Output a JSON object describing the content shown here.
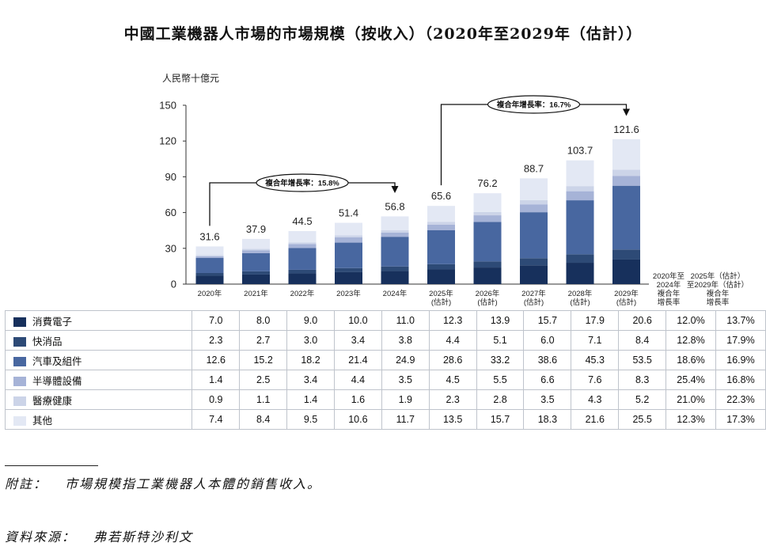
{
  "title": "中國工業機器人市場的市場規模（按收入）（2020年至2029年（估計））",
  "chart_data": {
    "type": "bar",
    "stacked": true,
    "unit": "人民幣十億元",
    "ylim": [
      0,
      150
    ],
    "yticks": [
      0,
      30,
      60,
      90,
      120,
      150
    ],
    "categories": [
      [
        "2020年"
      ],
      [
        "2021年"
      ],
      [
        "2022年"
      ],
      [
        "2023年"
      ],
      [
        "2024年"
      ],
      [
        "2025年",
        "(估計)"
      ],
      [
        "2026年",
        "(估計)"
      ],
      [
        "2027年",
        "(估計)"
      ],
      [
        "2028年",
        "(估計)"
      ],
      [
        "2029年",
        "(估計)"
      ]
    ],
    "totals": [
      "31.6",
      "37.9",
      "44.5",
      "51.4",
      "56.8",
      "65.6",
      "76.2",
      "88.7",
      "103.7",
      "121.6"
    ],
    "series": [
      {
        "name": "消費電子",
        "color": "#17305c",
        "values": [
          7.0,
          8.0,
          9.0,
          10.0,
          11.0,
          12.3,
          13.9,
          15.7,
          17.9,
          20.6
        ],
        "cagr1": "12.0%",
        "cagr2": "13.7%"
      },
      {
        "name": "快消品",
        "color": "#2d4a76",
        "values": [
          2.3,
          2.7,
          3.0,
          3.4,
          3.8,
          4.4,
          5.1,
          6.0,
          7.1,
          8.4
        ],
        "cagr1": "12.8%",
        "cagr2": "17.9%"
      },
      {
        "name": "汽車及組件",
        "color": "#4867a0",
        "values": [
          12.6,
          15.2,
          18.2,
          21.4,
          24.9,
          28.6,
          33.2,
          38.6,
          45.3,
          53.5
        ],
        "cagr1": "18.6%",
        "cagr2": "16.9%"
      },
      {
        "name": "半導體設備",
        "color": "#a6b3d7",
        "values": [
          1.4,
          2.5,
          3.4,
          4.4,
          3.5,
          4.5,
          5.5,
          6.6,
          7.6,
          8.3
        ],
        "cagr1": "25.4%",
        "cagr2": "16.8%"
      },
      {
        "name": "醫療健康",
        "color": "#ccd4e8",
        "values": [
          0.9,
          1.1,
          1.4,
          1.6,
          1.9,
          2.3,
          2.8,
          3.5,
          4.3,
          5.2
        ],
        "cagr1": "21.0%",
        "cagr2": "22.3%"
      },
      {
        "name": "其他",
        "color": "#e3e8f4",
        "values": [
          7.4,
          8.4,
          9.5,
          10.6,
          11.7,
          13.5,
          15.7,
          18.3,
          21.6,
          25.5
        ],
        "cagr1": "12.3%",
        "cagr2": "17.3%"
      }
    ],
    "cagr_header_1": [
      "2020年至",
      "2024年",
      "複合年",
      "增長率"
    ],
    "cagr_header_2": [
      "2025年（估計）",
      "至2029年（估計）",
      "複合年",
      "增長率"
    ],
    "annotations": [
      {
        "text": "複合年增長率：15.8%",
        "from": 0,
        "to": 4
      },
      {
        "text": "複合年增長率：16.7%",
        "from": 5,
        "to": 9
      }
    ]
  },
  "footnote": {
    "label": "附註：",
    "text": "市場規模指工業機器人本體的銷售收入。"
  },
  "source": {
    "label": "資料來源：",
    "text": "弗若斯特沙利文"
  }
}
